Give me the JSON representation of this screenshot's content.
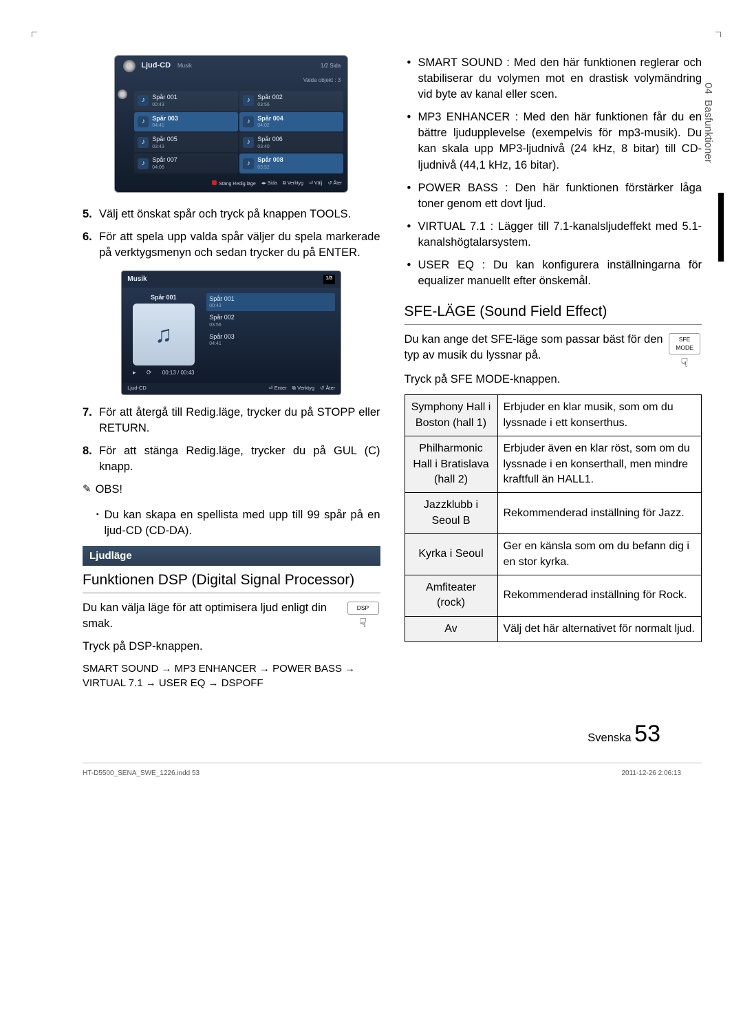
{
  "side": {
    "chapter": "04",
    "title": "Basfunktioner"
  },
  "screenshot1": {
    "title": "Ljud-CD",
    "category": "Musik",
    "page": "1/2 Sida",
    "selected_info": "Valda objekt : 3",
    "tracks": [
      {
        "name": "Spår 001",
        "dur": "00:43"
      },
      {
        "name": "Spår 002",
        "dur": "03:56"
      },
      {
        "name": "Spår 003",
        "dur": "04:41",
        "selected": true
      },
      {
        "name": "Spår 004",
        "dur": "04:02",
        "selected": true
      },
      {
        "name": "Spår 005",
        "dur": "03:43"
      },
      {
        "name": "Spår 006",
        "dur": "03:40"
      },
      {
        "name": "Spår 007",
        "dur": "04:06"
      },
      {
        "name": "Spår 008",
        "dur": "03:52",
        "selected": true
      }
    ],
    "footer": {
      "close": "Stäng Redig.läge",
      "page": "Sida",
      "tools": "Verktyg",
      "select": "Välj",
      "return": "Åter"
    }
  },
  "screenshot2": {
    "header": "Musik",
    "page": "1/3",
    "now_title": "Spår 001",
    "time": "00:13 / 00:43",
    "list": [
      {
        "name": "Spår 001",
        "dur": "00:43",
        "selected": true
      },
      {
        "name": "Spår 002",
        "dur": "03:56"
      },
      {
        "name": "Spår 003",
        "dur": "04:41"
      }
    ],
    "crumb": "Ljud-CD",
    "footer": {
      "enter": "Enter",
      "tools": "Verktyg",
      "return": "Åter"
    }
  },
  "steps_left": {
    "s5": "Välj ett önskat spår och tryck på knappen TOOLS.",
    "s6": "För att spela upp valda spår väljer du spela markerade på verktygsmenyn och sedan trycker du på ENTER.",
    "s7": "För att återgå till Redig.läge, trycker du på STOPP eller RETURN.",
    "s8": "För att stänga Redig.läge, trycker du på GUL (C) knapp."
  },
  "note_label": "OBS!",
  "note_text": "Du kan skapa en spellista med upp till 99 spår på en ljud-CD (CD-DA).",
  "sound_bar": "Ljudläge",
  "dsp_h": "Funktionen DSP (Digital Signal Processor)",
  "dsp_p": "Du kan välja läge för att optimisera ljud enligt din smak.",
  "dsp_btn": "Tryck på DSP-knappen.",
  "dsp_icon": "DSP",
  "dsp_chain": "SMART SOUND → MP3 ENHANCER → POWER BASS → VIRTUAL 7.1 → USER EQ → DSPOFF",
  "features": [
    {
      "k": "SMART SOUND",
      "v": ": Med den här funktionen reglerar och stabiliserar du volymen mot en drastisk volymändring vid byte av kanal eller scen."
    },
    {
      "k": "MP3 ENHANCER",
      "v": ": Med den här funktionen får du en bättre ljudupplevelse (exempelvis för mp3-musik). Du kan skala upp MP3-ljudnivå (24 kHz, 8 bitar) till CD-ljudnivå (44,1 kHz, 16 bitar)."
    },
    {
      "k": "POWER BASS",
      "v": ": Den här funktionen förstärker låga toner genom ett dovt ljud."
    },
    {
      "k": "VIRTUAL 7.1",
      "v": ": Lägger till 7.1-kanalsljudeffekt med 5.1-kanalshögtalarsystem."
    },
    {
      "k": "USER EQ",
      "v": ": Du kan konfigurera inställningarna för equalizer manuellt efter önskemål."
    }
  ],
  "sfe_h": "SFE-LÄGE (Sound Field Effect)",
  "sfe_p": "Du kan ange det SFE-läge som passar bäst för den typ av musik du lyssnar på.",
  "sfe_btn": "Tryck på SFE MODE-knappen.",
  "sfe_icon": "SFE MODE",
  "sfe_table": [
    {
      "a": "Symphony Hall i Boston (hall 1)",
      "b": "Erbjuder en klar musik, som om du lyssnade i ett konserthus."
    },
    {
      "a": "Philharmonic Hall i Bratislava (hall 2)",
      "b": "Erbjuder även en klar röst, som om du lyssnade i en konserthall, men mindre kraftfull än HALL1."
    },
    {
      "a": "Jazzklubb i Seoul B",
      "b": "Rekommenderad inställning för Jazz."
    },
    {
      "a": "Kyrka i Seoul",
      "b": "Ger en känsla som om du befann dig i en stor kyrka."
    },
    {
      "a": "Amfiteater (rock)",
      "b": "Rekommenderad inställning för Rock."
    },
    {
      "a": "Av",
      "b": "Välj det här alternativet för normalt ljud."
    }
  ],
  "page_lang": "Svenska",
  "page_no": "53",
  "indd": "HT-D5500_SENA_SWE_1226.indd   53",
  "timestamp": "2011-12-26    2:06:13"
}
